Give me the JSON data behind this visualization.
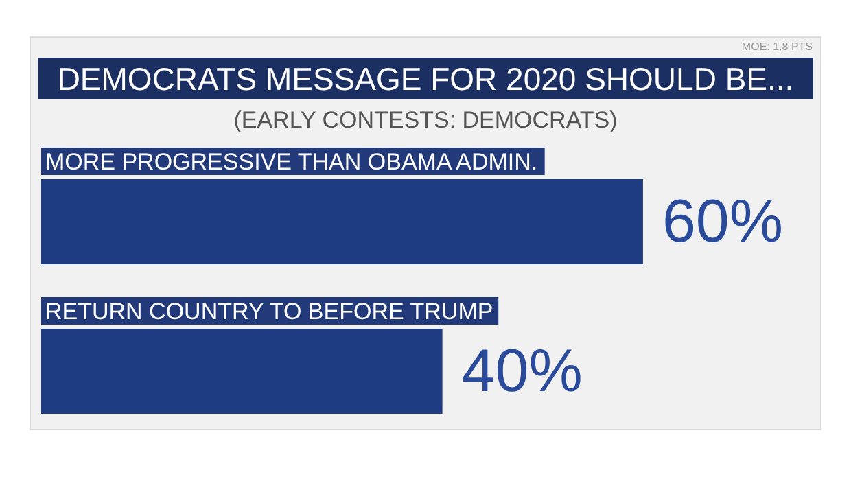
{
  "chart_data": {
    "type": "bar",
    "orientation": "horizontal",
    "title": "DEMOCRATS MESSAGE FOR 2020 SHOULD BE...",
    "subtitle": "(EARLY CONTESTS: DEMOCRATS)",
    "annotations": [
      "MOE: 1.8 PTS"
    ],
    "categories": [
      "MORE PROGRESSIVE THAN OBAMA ADMIN.",
      "RETURN COUNTRY TO BEFORE TRUMP"
    ],
    "values": [
      60,
      40
    ],
    "value_labels": [
      "60%",
      "40%"
    ],
    "color": "#1f3b82"
  }
}
